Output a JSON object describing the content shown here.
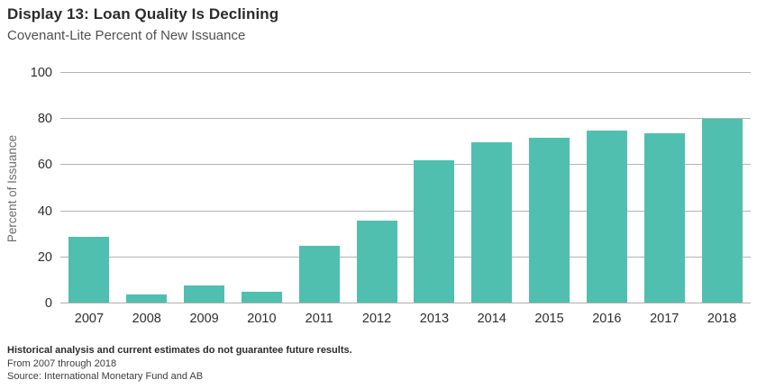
{
  "header": {
    "title": "Display 13: Loan Quality Is Declining",
    "subtitle": "Covenant-Lite Percent of New Issuance"
  },
  "chart_data": {
    "type": "bar",
    "categories": [
      "2007",
      "2008",
      "2009",
      "2010",
      "2011",
      "2012",
      "2013",
      "2014",
      "2015",
      "2016",
      "2017",
      "2018"
    ],
    "values": [
      29,
      4,
      8,
      5,
      25,
      36,
      62,
      70,
      72,
      75,
      74,
      80
    ],
    "title": "Display 13: Loan Quality Is Declining",
    "subtitle": "Covenant-Lite Percent of New Issuance",
    "xlabel": "",
    "ylabel": "Percent of Issuance",
    "ylim": [
      0,
      100
    ],
    "yticks": [
      0,
      20,
      40,
      60,
      80,
      100
    ],
    "grid": true,
    "legend": "none",
    "bar_color": "#50BFAF"
  },
  "footer": {
    "disclaimer": "Historical analysis and current estimates do not guarantee future results.",
    "period": "From 2007 through 2018",
    "source": "Source: International Monetary Fund and AB"
  },
  "colors": {
    "bar": "#50BFAF",
    "grid": "#B3B3B3",
    "text_dark": "#2B2B2B",
    "text_gray": "#6A6C6E",
    "background": "#FFFFFF"
  }
}
